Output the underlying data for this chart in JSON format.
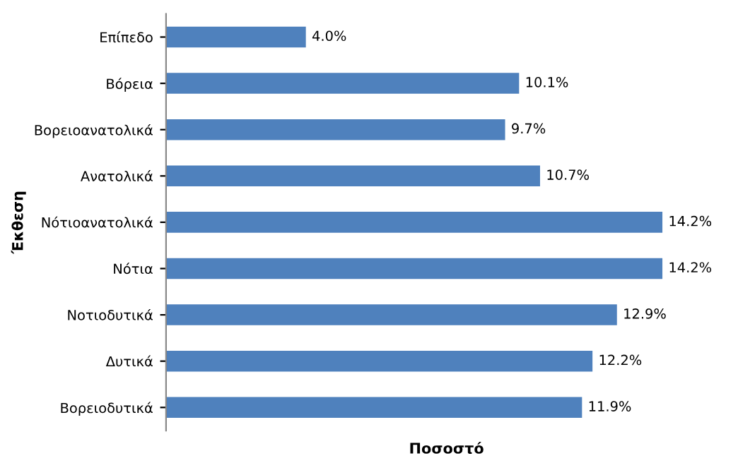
{
  "chart_data": {
    "type": "bar",
    "orientation": "horizontal",
    "xlabel": "Ποσοστό",
    "ylabel": "Έκθεση",
    "categories": [
      "Επίπεδο",
      "Βόρεια",
      "Βορειοανατολικά",
      "Ανατολικά",
      "Νότιοανατολικά",
      "Νότια",
      "Νοτιοδυτικά",
      "Δυτικά",
      "Βορειοδυτικά"
    ],
    "values": [
      4.0,
      10.1,
      9.7,
      10.7,
      14.2,
      14.2,
      12.9,
      12.2,
      11.9
    ],
    "value_labels": [
      "4.0%",
      "10.1%",
      "9.7%",
      "10.7%",
      "14.2%",
      "14.2%",
      "12.9%",
      "12.2%",
      "11.9%"
    ],
    "color": "#4f81bd",
    "grid": false,
    "legend": false,
    "tick_labels": "y"
  }
}
